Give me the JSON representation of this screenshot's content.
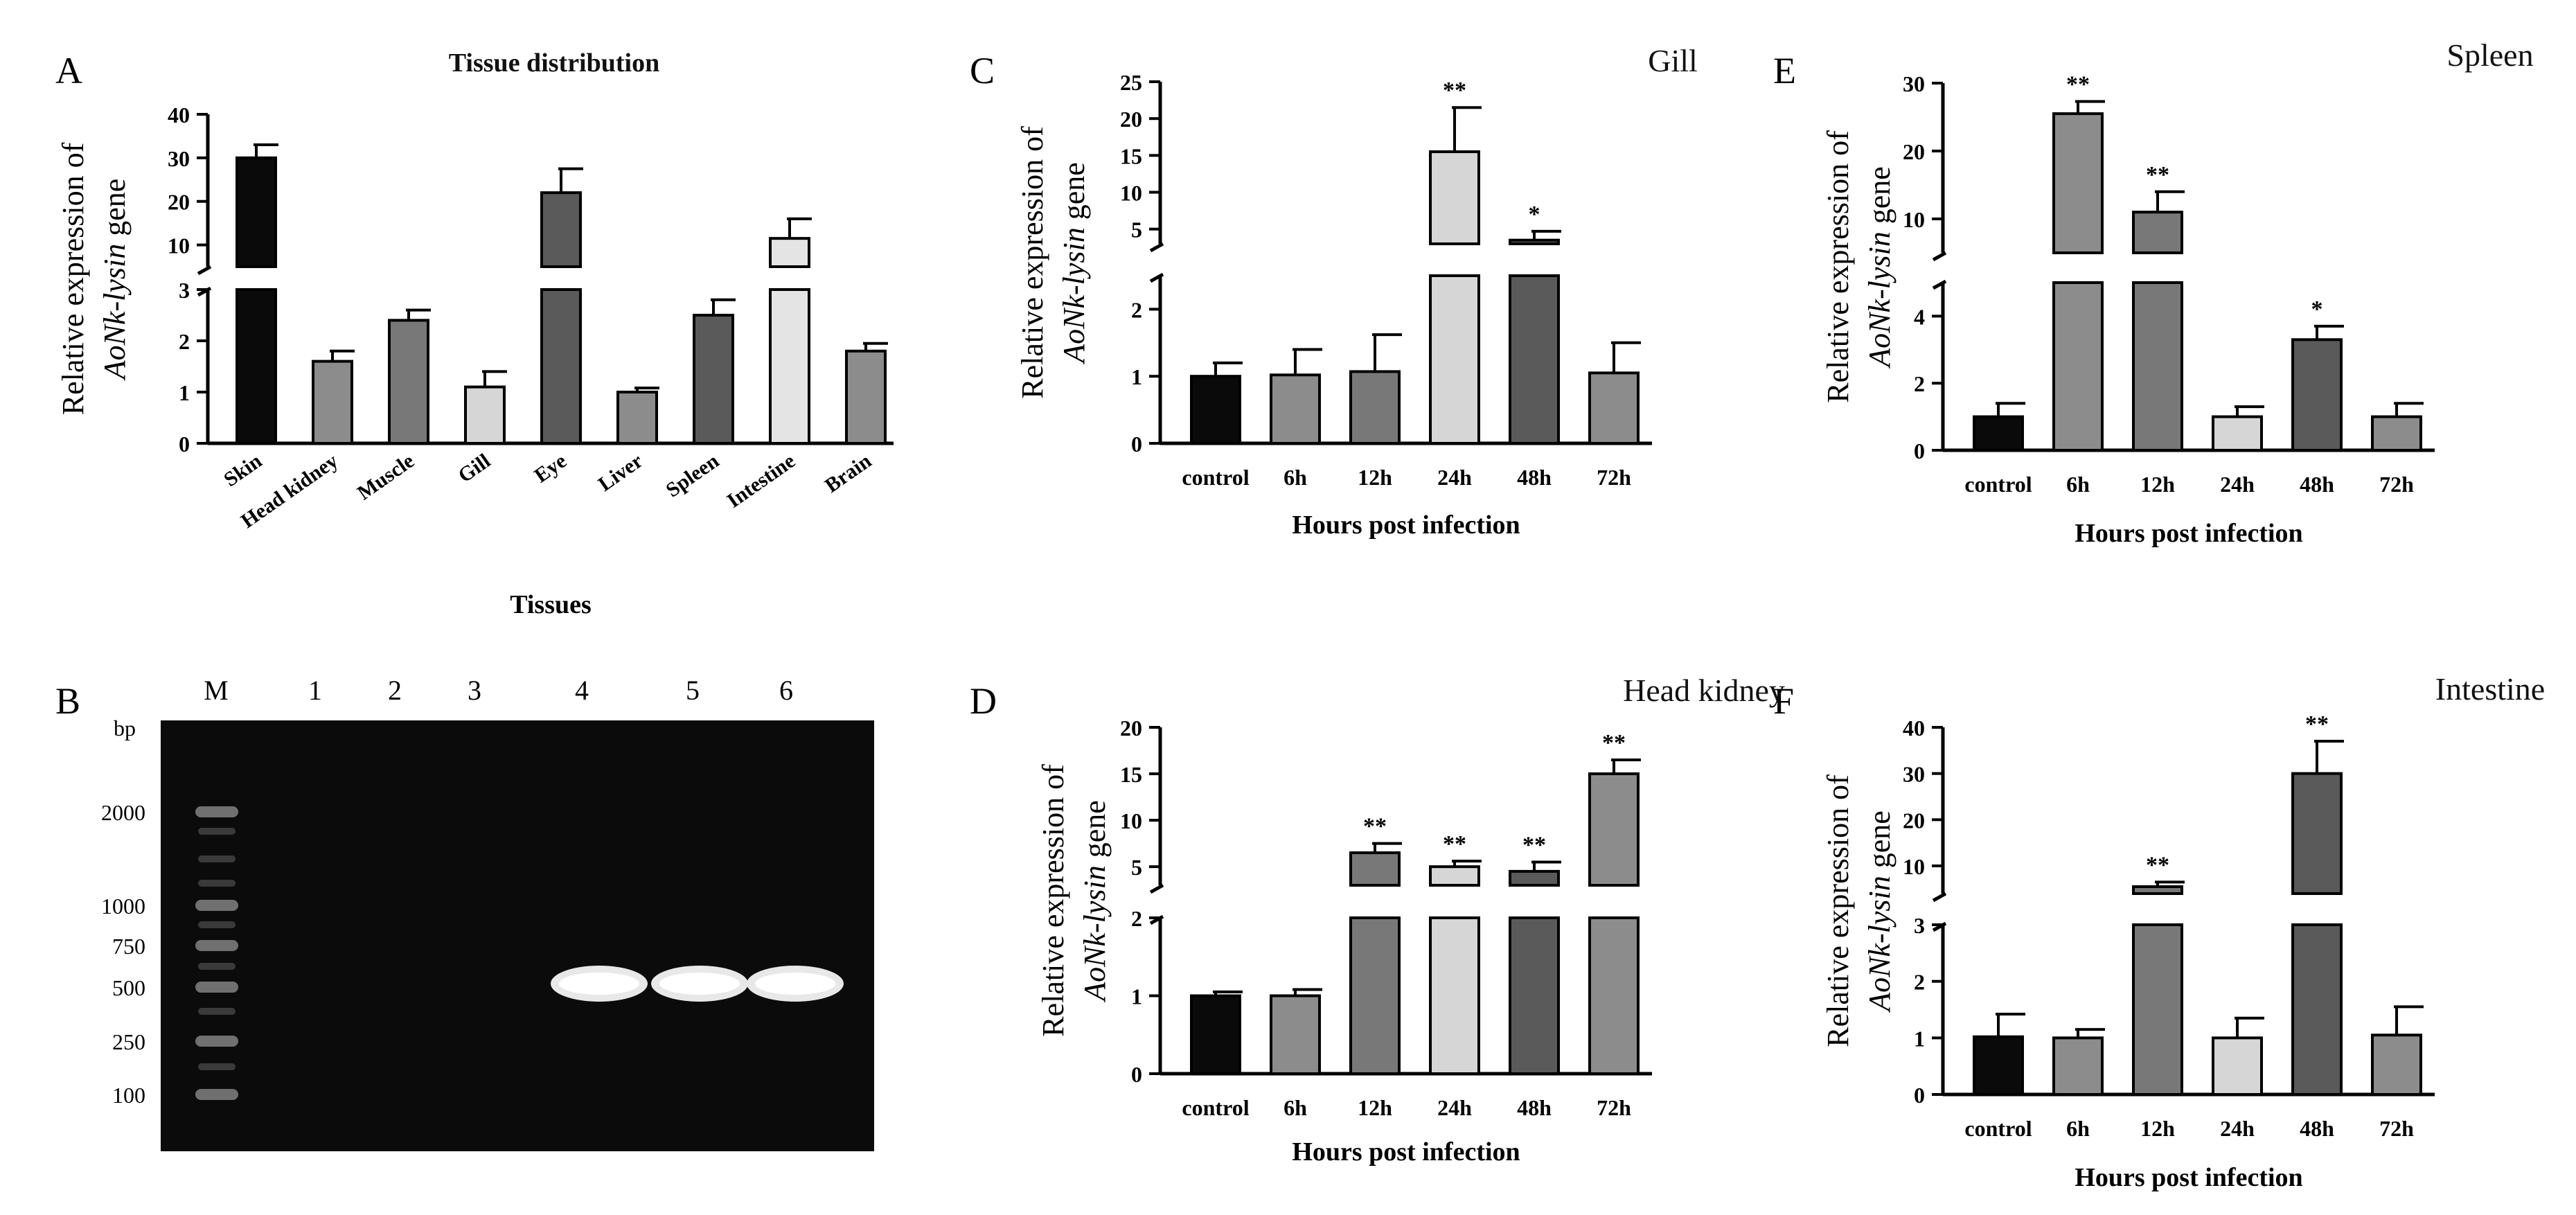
{
  "figure": {
    "panel_letters": [
      "A",
      "B",
      "C",
      "D",
      "E",
      "F"
    ]
  },
  "colors": {
    "black": "#0a0a0a",
    "mid_gray": "#8c8c8c",
    "gray": "#787878",
    "light_gray": "#d6d6d6",
    "dark_gray": "#5a5a5a",
    "gel_bg": "#0b0b0b",
    "band": "#ffffff"
  },
  "chart_data": [
    {
      "panel": "A",
      "type": "bar",
      "title": "Tissue distribution",
      "xlabel": "Tissues",
      "ylabel_prefix": "Relative expression of",
      "ylabel_gene": "AoNk-lysin",
      "ylabel_suffix": "gene",
      "categories": [
        "Skin",
        "Head kidney",
        "Muscle",
        "Gill",
        "Eye",
        "Liver",
        "Spleen",
        "Intestine",
        "Brain"
      ],
      "values": [
        30.0,
        1.6,
        2.4,
        1.1,
        22.0,
        1.0,
        2.5,
        11.5,
        1.8
      ],
      "errors": [
        3.0,
        0.2,
        0.2,
        0.3,
        5.5,
        0.08,
        0.3,
        4.5,
        0.15
      ],
      "colors": [
        "#0a0a0a",
        "#8c8c8c",
        "#787878",
        "#d6d6d6",
        "#5a5a5a",
        "#8c8c8c",
        "#5a5a5a",
        "#e4e4e4",
        "#8c8c8c"
      ],
      "significance": [
        "",
        "",
        "",
        "",
        "",
        "",
        "",
        "",
        ""
      ],
      "lower_axis": {
        "range": [
          0,
          3
        ],
        "ticks": [
          0,
          1,
          2,
          3
        ]
      },
      "upper_axis": {
        "range": [
          5,
          40
        ],
        "ticks": [
          10,
          20,
          30,
          40
        ]
      },
      "rotate_categories": true
    },
    {
      "panel": "C",
      "type": "bar",
      "title": "Gill",
      "xlabel": "Hours post infection",
      "ylabel_prefix": "Relative expression of",
      "ylabel_gene": "AoNk-lysin",
      "ylabel_suffix": "gene",
      "categories": [
        "control",
        "6h",
        "12h",
        "24h",
        "48h",
        "72h"
      ],
      "values": [
        1.0,
        1.02,
        1.07,
        15.5,
        3.5,
        1.05
      ],
      "errors": [
        0.2,
        0.38,
        0.55,
        6.0,
        1.2,
        0.45
      ],
      "colors": [
        "#0a0a0a",
        "#8c8c8c",
        "#787878",
        "#d6d6d6",
        "#5a5a5a",
        "#8c8c8c"
      ],
      "significance": [
        "",
        "",
        "",
        "**",
        "*",
        ""
      ],
      "lower_axis": {
        "range": [
          0,
          2.5
        ],
        "ticks": [
          0,
          1,
          2
        ]
      },
      "upper_axis": {
        "range": [
          3,
          25
        ],
        "ticks": [
          5,
          10,
          15,
          20,
          25
        ]
      },
      "rotate_categories": false
    },
    {
      "panel": "D",
      "type": "bar",
      "title": "Head kidney",
      "xlabel": "Hours post infection",
      "ylabel_prefix": "Relative expression of",
      "ylabel_gene": "AoNk-lysin",
      "ylabel_suffix": "gene",
      "categories": [
        "control",
        "6h",
        "12h",
        "24h",
        "48h",
        "72h"
      ],
      "values": [
        1.0,
        1.0,
        6.5,
        5.0,
        4.5,
        15.0
      ],
      "errors": [
        0.05,
        0.08,
        1.0,
        0.6,
        1.0,
        1.5
      ],
      "colors": [
        "#0a0a0a",
        "#8c8c8c",
        "#787878",
        "#d6d6d6",
        "#5a5a5a",
        "#8c8c8c"
      ],
      "significance": [
        "",
        "",
        "**",
        "**",
        "**",
        "**"
      ],
      "lower_axis": {
        "range": [
          0,
          2
        ],
        "ticks": [
          0,
          1,
          2
        ]
      },
      "upper_axis": {
        "range": [
          3,
          20
        ],
        "ticks": [
          5,
          10,
          15,
          20
        ]
      },
      "rotate_categories": false
    },
    {
      "panel": "E",
      "type": "bar",
      "title": "Spleen",
      "xlabel": "Hours post infection",
      "ylabel_prefix": "Relative expression of",
      "ylabel_gene": "AoNk-lysin",
      "ylabel_suffix": "gene",
      "categories": [
        "control",
        "6h",
        "12h",
        "24h",
        "48h",
        "72h"
      ],
      "values": [
        1.0,
        25.5,
        11.0,
        1.0,
        3.3,
        1.0
      ],
      "errors": [
        0.4,
        1.8,
        3.0,
        0.3,
        0.4,
        0.4
      ],
      "colors": [
        "#0a0a0a",
        "#8c8c8c",
        "#787878",
        "#d6d6d6",
        "#5a5a5a",
        "#8c8c8c"
      ],
      "significance": [
        "",
        "**",
        "**",
        "",
        "*",
        ""
      ],
      "lower_axis": {
        "range": [
          0,
          5
        ],
        "ticks": [
          0,
          2,
          4
        ]
      },
      "upper_axis": {
        "range": [
          5,
          30
        ],
        "ticks": [
          10,
          20,
          30
        ]
      },
      "rotate_categories": false
    },
    {
      "panel": "F",
      "type": "bar",
      "title": "Intestine",
      "xlabel": "Hours post infection",
      "ylabel_prefix": "Relative expression of",
      "ylabel_gene": "AoNk-lysin",
      "ylabel_suffix": "gene",
      "categories": [
        "control",
        "6h",
        "12h",
        "24h",
        "48h",
        "72h"
      ],
      "values": [
        1.02,
        1.0,
        5.5,
        1.0,
        30.0,
        1.05
      ],
      "errors": [
        0.4,
        0.15,
        1.0,
        0.35,
        7.0,
        0.5
      ],
      "colors": [
        "#0a0a0a",
        "#8c8c8c",
        "#787878",
        "#d6d6d6",
        "#5a5a5a",
        "#8c8c8c"
      ],
      "significance": [
        "",
        "",
        "**",
        "",
        "**",
        ""
      ],
      "lower_axis": {
        "range": [
          0,
          3
        ],
        "ticks": [
          0,
          1,
          2,
          3
        ]
      },
      "upper_axis": {
        "range": [
          4,
          40
        ],
        "ticks": [
          10,
          20,
          30,
          40
        ]
      },
      "rotate_categories": false
    }
  ],
  "gel": {
    "panel": "B",
    "lane_labels": [
      "M",
      "1",
      "2",
      "3",
      "4",
      "5",
      "6"
    ],
    "unit_label": "bp",
    "marker_sizes": [
      "2000",
      "1000",
      "750",
      "500",
      "250",
      "100"
    ],
    "band_lanes": [
      "4",
      "5",
      "6"
    ],
    "band_size": "500"
  }
}
